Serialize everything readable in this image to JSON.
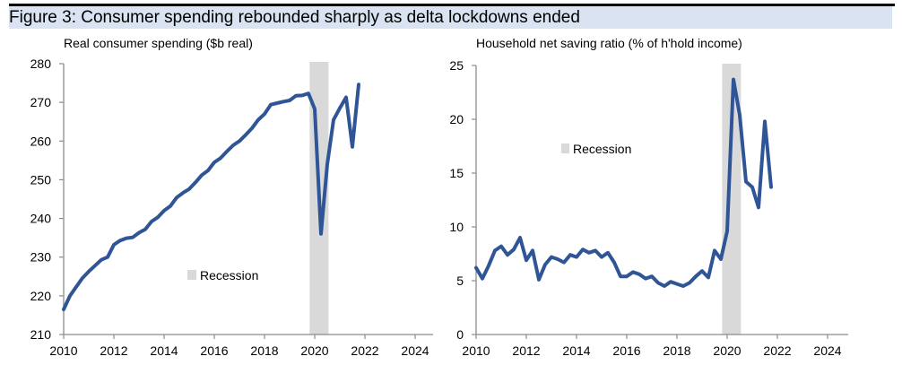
{
  "figure_title": "Figure 3: Consumer spending rebounded sharply as delta lockdowns ended",
  "colors": {
    "line": "#2f5597",
    "recession": "#d9d9d9",
    "axis": "#8c8c8c",
    "header_band": "#d9e3f1"
  },
  "chart_data": [
    {
      "type": "line",
      "title": "Real consumer spending ($b real)",
      "xlabel": "",
      "ylabel": "",
      "xlim": [
        2010,
        2025.4
      ],
      "ylim": [
        210,
        280
      ],
      "xticks": [
        2010,
        2012,
        2014,
        2016,
        2018,
        2020,
        2022,
        2024
      ],
      "yticks": [
        210,
        220,
        230,
        240,
        250,
        260,
        270,
        280
      ],
      "grid": false,
      "legend": {
        "position": "bottom-center",
        "entries": [
          "Recession"
        ]
      },
      "shaded_regions": [
        {
          "label": "Recession",
          "from": 2019.8,
          "to": 2020.55
        }
      ],
      "series": [
        {
          "name": "Real consumer spending",
          "x": [
            2010.0,
            2010.25,
            2010.5,
            2010.75,
            2011.0,
            2011.25,
            2011.5,
            2011.75,
            2012.0,
            2012.25,
            2012.5,
            2012.75,
            2013.0,
            2013.25,
            2013.5,
            2013.75,
            2014.0,
            2014.25,
            2014.5,
            2014.75,
            2015.0,
            2015.25,
            2015.5,
            2015.75,
            2016.0,
            2016.25,
            2016.5,
            2016.75,
            2017.0,
            2017.25,
            2017.5,
            2017.75,
            2018.0,
            2018.25,
            2018.5,
            2018.75,
            2019.0,
            2019.25,
            2019.5,
            2019.75,
            2020.0,
            2020.25,
            2020.5,
            2020.75,
            2021.0,
            2021.25,
            2021.5,
            2021.75
          ],
          "values": [
            216.5,
            220.0,
            222.3,
            224.6,
            226.3,
            227.8,
            229.3,
            230.0,
            233.2,
            234.3,
            234.9,
            235.1,
            236.3,
            237.2,
            239.2,
            240.3,
            242.0,
            243.2,
            245.4,
            246.6,
            247.6,
            249.3,
            251.2,
            252.4,
            254.5,
            255.6,
            257.3,
            258.9,
            260.0,
            261.6,
            263.3,
            265.5,
            267.0,
            269.4,
            269.8,
            270.2,
            270.5,
            271.7,
            271.8,
            272.3,
            268.3,
            236.0,
            254.0,
            265.5,
            268.5,
            271.3,
            258.5,
            274.6
          ]
        }
      ]
    },
    {
      "type": "line",
      "title": "Household net saving ratio (% of h'hold income)",
      "xlabel": "",
      "ylabel": "",
      "xlim": [
        2010,
        2025.4
      ],
      "ylim": [
        0,
        25
      ],
      "xticks": [
        2010,
        2012,
        2014,
        2016,
        2018,
        2020,
        2022,
        2024
      ],
      "yticks": [
        0,
        5,
        10,
        15,
        20,
        25
      ],
      "grid": false,
      "legend": {
        "position": "upper-center",
        "entries": [
          "Recession"
        ]
      },
      "shaded_regions": [
        {
          "label": "Recession",
          "from": 2019.8,
          "to": 2020.55
        }
      ],
      "series": [
        {
          "name": "Household net saving ratio",
          "x": [
            2010.0,
            2010.25,
            2010.5,
            2010.75,
            2011.0,
            2011.25,
            2011.5,
            2011.75,
            2012.0,
            2012.25,
            2012.5,
            2012.75,
            2013.0,
            2013.25,
            2013.5,
            2013.75,
            2014.0,
            2014.25,
            2014.5,
            2014.75,
            2015.0,
            2015.25,
            2015.5,
            2015.75,
            2016.0,
            2016.25,
            2016.5,
            2016.75,
            2017.0,
            2017.25,
            2017.5,
            2017.75,
            2018.0,
            2018.25,
            2018.5,
            2018.75,
            2019.0,
            2019.25,
            2019.5,
            2019.75,
            2020.0,
            2020.25,
            2020.5,
            2020.75,
            2021.0,
            2021.25,
            2021.5,
            2021.75
          ],
          "values": [
            6.2,
            5.2,
            6.4,
            7.8,
            8.2,
            7.4,
            7.9,
            9.0,
            6.9,
            7.8,
            5.1,
            6.5,
            7.2,
            7.0,
            6.7,
            7.4,
            7.2,
            7.9,
            7.6,
            7.8,
            7.2,
            7.6,
            6.7,
            5.4,
            5.4,
            5.8,
            5.6,
            5.2,
            5.4,
            4.8,
            4.5,
            4.9,
            4.7,
            4.5,
            4.8,
            5.4,
            5.9,
            5.3,
            7.8,
            7.0,
            9.6,
            23.7,
            20.4,
            14.2,
            13.7,
            11.8,
            19.8,
            13.7
          ]
        }
      ]
    }
  ]
}
